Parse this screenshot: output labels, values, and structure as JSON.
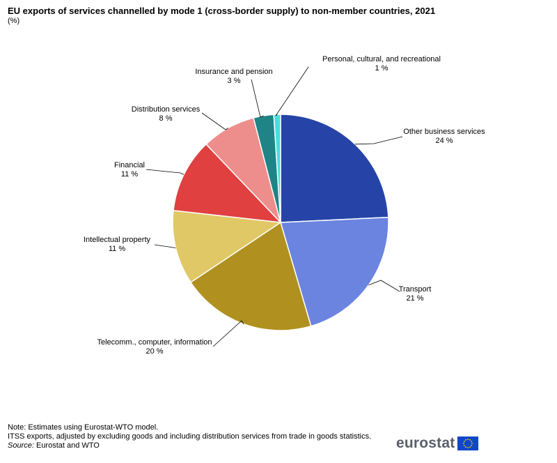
{
  "title": "EU exports of services channelled by mode 1 (cross-border supply) to non-member countries, 2021",
  "subtitle": "(%)",
  "chart_data": {
    "type": "pie",
    "slices": [
      {
        "name": "Other business services",
        "value": 24,
        "label": "24 %",
        "color": "#2644a7"
      },
      {
        "name": "Transport",
        "value": 21,
        "label": "21 %",
        "color": "#6b84e0"
      },
      {
        "name": "Telecomm., computer,  information",
        "value": 20,
        "label": "20 %",
        "color": "#b09120"
      },
      {
        "name": "Intellectual property",
        "value": 11,
        "label": "11 %",
        "color": "#e1c866"
      },
      {
        "name": "Financial",
        "value": 11,
        "label": "11 %",
        "color": "#e04040"
      },
      {
        "name": "Distribution services",
        "value": 8,
        "label": "8 %",
        "color": "#ee8e8c"
      },
      {
        "name": "Insurance and pension",
        "value": 3,
        "label": "3 %",
        "color": "#208486"
      },
      {
        "name": "Personal, cultural, and recreational",
        "value": 1,
        "label": "1 %",
        "color": "#48dede"
      }
    ]
  },
  "notes": {
    "line1": "Note: Estimates using Eurostat-WTO model.",
    "line2": "ITSS exports, adjusted by excluding goods and including distribution services from trade in goods statistics.",
    "source_label": "Source:",
    "source_value": " Eurostat and WTO"
  },
  "logo": {
    "text": "eurostat",
    "flag_color": "#0e47cb",
    "star_color": "#ffdd00"
  }
}
